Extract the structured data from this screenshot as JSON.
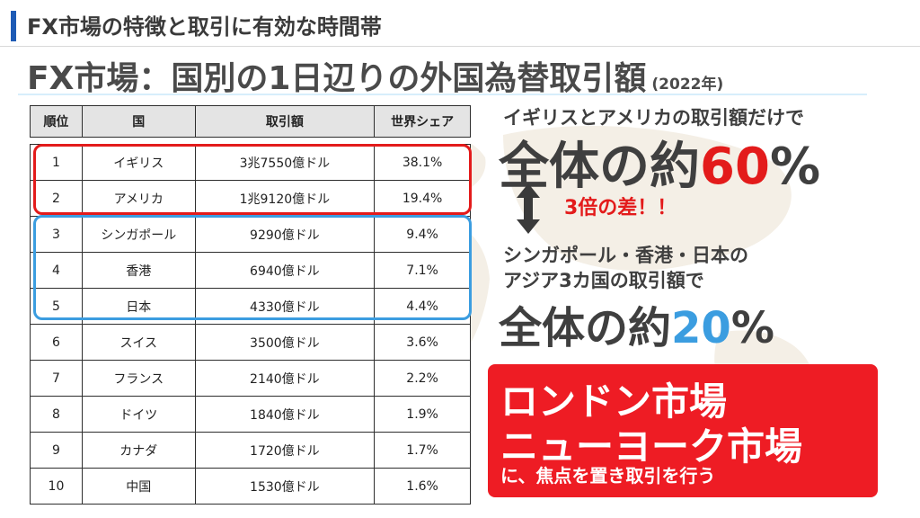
{
  "header": {
    "section_title": "FX市場の特徴と取引に有効な時間帯"
  },
  "slide": {
    "title": "FX市場：国別の1日辺りの外国為替取引額",
    "year_note": "(2022年)"
  },
  "table": {
    "headers": [
      "順位",
      "国",
      "取引額",
      "世界シェア"
    ],
    "rows": [
      [
        "1",
        "イギリス",
        "3兆7550億ドル",
        "38.1%"
      ],
      [
        "2",
        "アメリカ",
        "1兆9120億ドル",
        "19.4%"
      ],
      [
        "3",
        "シンガポール",
        "9290億ドル",
        "9.4%"
      ],
      [
        "4",
        "香港",
        "6940億ドル",
        "7.1%"
      ],
      [
        "5",
        "日本",
        "4330億ドル",
        "4.4%"
      ],
      [
        "6",
        "スイス",
        "3500億ドル",
        "3.6%"
      ],
      [
        "7",
        "フランス",
        "2140億ドル",
        "2.2%"
      ],
      [
        "8",
        "ドイツ",
        "1840億ドル",
        "1.9%"
      ],
      [
        "9",
        "カナダ",
        "1720億ドル",
        "1.7%"
      ],
      [
        "10",
        "中国",
        "1530億ドル",
        "1.6%"
      ]
    ]
  },
  "highlight1": {
    "intro": "イギリスとアメリカの取引額だけで",
    "big_prefix": "全体の約",
    "big_value": "60",
    "big_unit": "%"
  },
  "comparison": {
    "text": "3倍の差！！"
  },
  "highlight2": {
    "intro_line1": "シンガポール・香港・日本の",
    "intro_line2": "アジア3カ国の取引額で",
    "big_prefix": "全体の約",
    "big_value": "20",
    "big_unit": "%"
  },
  "callout": {
    "line1": "ロンドン市場",
    "line2": "ニューヨーク市場",
    "line3": "に、焦点を置き取引を行う"
  },
  "colors": {
    "accent_blue": "#1e5bb5",
    "highlight_red": "#e31b1b",
    "highlight_blue": "#3b9de0",
    "callout_red": "#ee1c24"
  }
}
